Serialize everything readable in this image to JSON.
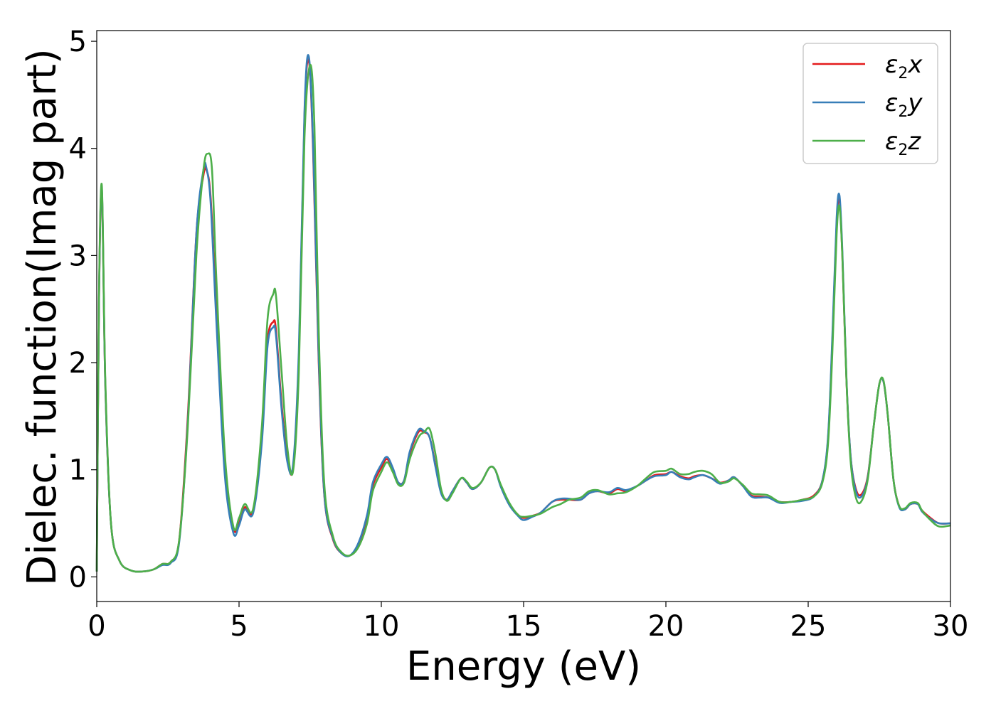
{
  "chart_data": {
    "type": "line",
    "title": "",
    "xlabel": "Energy (eV)",
    "ylabel": "Dielec. function(Imag part)",
    "xlim": [
      0,
      30
    ],
    "ylim": [
      -0.23,
      5.1
    ],
    "xticks": [
      "0",
      "5",
      "10",
      "15",
      "20",
      "25",
      "30"
    ],
    "yticks": [
      "0",
      "1",
      "2",
      "3",
      "4",
      "5"
    ],
    "grid": false,
    "legend_position": "top-right",
    "series": [
      {
        "name": "x",
        "color": "#e41a1c",
        "x": [
          0,
          0.08,
          0.18,
          0.3,
          0.5,
          0.8,
          1.2,
          1.6,
          2.0,
          2.3,
          2.6,
          2.9,
          3.2,
          3.5,
          3.75,
          3.85,
          4.0,
          4.2,
          4.5,
          4.8,
          5.0,
          5.2,
          5.5,
          5.8,
          6.0,
          6.2,
          6.3,
          6.5,
          6.7,
          6.9,
          7.1,
          7.3,
          7.45,
          7.6,
          7.8,
          8.0,
          8.3,
          8.6,
          8.9,
          9.2,
          9.5,
          9.7,
          10.0,
          10.2,
          10.4,
          10.6,
          10.8,
          11.0,
          11.3,
          11.5,
          11.7,
          11.9,
          12.1,
          12.3,
          12.5,
          12.8,
          13.0,
          13.2,
          13.5,
          13.8,
          14.0,
          14.2,
          14.5,
          14.8,
          15.0,
          15.3,
          15.6,
          16.0,
          16.3,
          16.6,
          17.0,
          17.3,
          17.6,
          18.0,
          18.3,
          18.6,
          19.0,
          19.3,
          19.6,
          20.0,
          20.2,
          20.5,
          20.8,
          21.0,
          21.3,
          21.6,
          21.9,
          22.2,
          22.4,
          22.7,
          23.0,
          23.3,
          23.6,
          24.0,
          24.4,
          24.8,
          25.2,
          25.5,
          25.7,
          25.85,
          26.0,
          26.1,
          26.2,
          26.35,
          26.5,
          26.7,
          26.9,
          27.1,
          27.3,
          27.5,
          27.65,
          27.8,
          28.0,
          28.2,
          28.4,
          28.6,
          28.85,
          29.0,
          29.3,
          29.6,
          30.0
        ],
        "y": [
          0.05,
          2.6,
          3.6,
          1.8,
          0.5,
          0.15,
          0.06,
          0.05,
          0.07,
          0.12,
          0.14,
          0.35,
          1.5,
          3.2,
          3.75,
          3.8,
          3.55,
          2.5,
          1.0,
          0.45,
          0.5,
          0.65,
          0.62,
          1.3,
          2.2,
          2.38,
          2.3,
          1.6,
          1.1,
          1.02,
          2.0,
          4.3,
          4.82,
          4.0,
          2.0,
          0.75,
          0.35,
          0.22,
          0.2,
          0.3,
          0.55,
          0.85,
          1.02,
          1.1,
          1.0,
          0.88,
          0.9,
          1.15,
          1.35,
          1.35,
          1.3,
          1.05,
          0.8,
          0.72,
          0.8,
          0.92,
          0.88,
          0.82,
          0.88,
          1.02,
          1.0,
          0.85,
          0.68,
          0.58,
          0.55,
          0.57,
          0.6,
          0.7,
          0.72,
          0.72,
          0.72,
          0.78,
          0.8,
          0.78,
          0.82,
          0.8,
          0.85,
          0.9,
          0.95,
          0.96,
          0.98,
          0.94,
          0.92,
          0.94,
          0.95,
          0.92,
          0.88,
          0.9,
          0.93,
          0.85,
          0.76,
          0.75,
          0.74,
          0.7,
          0.7,
          0.72,
          0.76,
          0.9,
          1.3,
          2.2,
          3.3,
          3.52,
          3.0,
          1.8,
          1.1,
          0.8,
          0.78,
          0.95,
          1.4,
          1.8,
          1.82,
          1.5,
          0.9,
          0.66,
          0.63,
          0.68,
          0.68,
          0.62,
          0.55,
          0.5,
          0.5
        ]
      },
      {
        "name": "y",
        "color": "#377eb8",
        "x": [
          0,
          0.08,
          0.18,
          0.3,
          0.5,
          0.8,
          1.2,
          1.6,
          2.0,
          2.3,
          2.6,
          2.9,
          3.2,
          3.5,
          3.75,
          3.85,
          4.0,
          4.2,
          4.5,
          4.8,
          5.0,
          5.2,
          5.5,
          5.8,
          6.0,
          6.2,
          6.3,
          6.5,
          6.7,
          6.9,
          7.1,
          7.3,
          7.45,
          7.6,
          7.8,
          8.0,
          8.3,
          8.6,
          8.9,
          9.2,
          9.5,
          9.7,
          10.0,
          10.2,
          10.4,
          10.6,
          10.8,
          11.0,
          11.3,
          11.5,
          11.7,
          11.9,
          12.1,
          12.3,
          12.5,
          12.8,
          13.0,
          13.2,
          13.5,
          13.8,
          14.0,
          14.2,
          14.5,
          14.8,
          15.0,
          15.3,
          15.6,
          16.0,
          16.3,
          16.6,
          17.0,
          17.3,
          17.6,
          18.0,
          18.3,
          18.6,
          19.0,
          19.3,
          19.6,
          20.0,
          20.2,
          20.5,
          20.8,
          21.0,
          21.3,
          21.6,
          21.9,
          22.2,
          22.4,
          22.7,
          23.0,
          23.3,
          23.6,
          24.0,
          24.4,
          24.8,
          25.2,
          25.5,
          25.7,
          25.85,
          26.0,
          26.1,
          26.2,
          26.35,
          26.5,
          26.7,
          26.9,
          27.1,
          27.3,
          27.5,
          27.65,
          27.8,
          28.0,
          28.2,
          28.4,
          28.6,
          28.85,
          29.0,
          29.3,
          29.6,
          30.0
        ],
        "y": [
          0.05,
          2.6,
          3.62,
          1.8,
          0.5,
          0.15,
          0.06,
          0.05,
          0.07,
          0.11,
          0.13,
          0.33,
          1.45,
          3.2,
          3.8,
          3.82,
          3.5,
          2.4,
          0.95,
          0.41,
          0.48,
          0.63,
          0.6,
          1.25,
          2.15,
          2.33,
          2.25,
          1.55,
          1.07,
          1.05,
          2.1,
          4.35,
          4.86,
          4.05,
          2.05,
          0.76,
          0.36,
          0.22,
          0.2,
          0.32,
          0.58,
          0.88,
          1.05,
          1.12,
          1.02,
          0.88,
          0.9,
          1.17,
          1.37,
          1.36,
          1.3,
          1.03,
          0.78,
          0.72,
          0.8,
          0.92,
          0.88,
          0.82,
          0.88,
          1.02,
          1.0,
          0.84,
          0.67,
          0.57,
          0.53,
          0.56,
          0.6,
          0.7,
          0.73,
          0.73,
          0.72,
          0.78,
          0.8,
          0.79,
          0.83,
          0.81,
          0.85,
          0.9,
          0.94,
          0.95,
          0.98,
          0.93,
          0.91,
          0.93,
          0.95,
          0.92,
          0.87,
          0.9,
          0.93,
          0.85,
          0.75,
          0.74,
          0.74,
          0.69,
          0.7,
          0.71,
          0.75,
          0.9,
          1.32,
          2.25,
          3.35,
          3.56,
          3.05,
          1.82,
          1.1,
          0.78,
          0.76,
          0.94,
          1.4,
          1.8,
          1.82,
          1.5,
          0.9,
          0.65,
          0.63,
          0.68,
          0.68,
          0.61,
          0.54,
          0.5,
          0.5
        ]
      },
      {
        "name": "z",
        "color": "#4daf4a",
        "x": [
          0,
          0.08,
          0.18,
          0.3,
          0.5,
          0.8,
          1.2,
          1.6,
          2.0,
          2.3,
          2.6,
          2.9,
          3.2,
          3.5,
          3.75,
          3.9,
          4.05,
          4.2,
          4.5,
          4.8,
          5.0,
          5.2,
          5.5,
          5.8,
          6.0,
          6.2,
          6.3,
          6.5,
          6.7,
          6.9,
          7.1,
          7.3,
          7.5,
          7.65,
          7.8,
          8.0,
          8.3,
          8.6,
          8.9,
          9.2,
          9.5,
          9.7,
          10.0,
          10.2,
          10.4,
          10.6,
          10.8,
          11.0,
          11.3,
          11.5,
          11.7,
          11.9,
          12.1,
          12.3,
          12.5,
          12.8,
          13.0,
          13.2,
          13.5,
          13.8,
          14.0,
          14.2,
          14.5,
          14.8,
          15.0,
          15.3,
          15.6,
          16.0,
          16.3,
          16.6,
          17.0,
          17.3,
          17.6,
          18.0,
          18.3,
          18.6,
          19.0,
          19.3,
          19.6,
          20.0,
          20.2,
          20.5,
          20.8,
          21.0,
          21.3,
          21.6,
          21.9,
          22.2,
          22.4,
          22.7,
          23.0,
          23.3,
          23.6,
          24.0,
          24.4,
          24.8,
          25.2,
          25.5,
          25.7,
          25.85,
          26.0,
          26.1,
          26.2,
          26.35,
          26.5,
          26.7,
          26.9,
          27.1,
          27.3,
          27.5,
          27.65,
          27.8,
          28.0,
          28.2,
          28.4,
          28.6,
          28.85,
          29.0,
          29.3,
          29.6,
          30.0
        ],
        "y": [
          0.05,
          2.65,
          3.65,
          1.85,
          0.5,
          0.15,
          0.06,
          0.05,
          0.07,
          0.12,
          0.14,
          0.35,
          1.4,
          3.0,
          3.8,
          3.95,
          3.8,
          2.8,
          1.15,
          0.47,
          0.55,
          0.68,
          0.64,
          1.4,
          2.4,
          2.64,
          2.62,
          1.9,
          1.2,
          0.99,
          1.9,
          4.1,
          4.78,
          4.2,
          2.3,
          0.85,
          0.38,
          0.23,
          0.2,
          0.28,
          0.5,
          0.8,
          0.98,
          1.07,
          0.98,
          0.86,
          0.88,
          1.1,
          1.3,
          1.35,
          1.38,
          1.15,
          0.82,
          0.71,
          0.78,
          0.92,
          0.89,
          0.83,
          0.88,
          1.02,
          1.0,
          0.86,
          0.69,
          0.58,
          0.56,
          0.57,
          0.59,
          0.65,
          0.68,
          0.72,
          0.74,
          0.8,
          0.81,
          0.77,
          0.78,
          0.79,
          0.85,
          0.92,
          0.98,
          0.99,
          1.01,
          0.96,
          0.96,
          0.98,
          0.99,
          0.96,
          0.88,
          0.89,
          0.92,
          0.86,
          0.78,
          0.77,
          0.76,
          0.7,
          0.7,
          0.72,
          0.75,
          0.88,
          1.25,
          2.1,
          3.2,
          3.46,
          3.0,
          1.8,
          1.05,
          0.72,
          0.72,
          0.92,
          1.4,
          1.8,
          1.83,
          1.5,
          0.9,
          0.66,
          0.64,
          0.69,
          0.69,
          0.62,
          0.53,
          0.47,
          0.48
        ]
      }
    ]
  },
  "legend": {
    "symbol": "ε",
    "subscript": "2",
    "items": [
      {
        "component": "x",
        "color": "#e41a1c"
      },
      {
        "component": "y",
        "color": "#377eb8"
      },
      {
        "component": "z",
        "color": "#4daf4a"
      }
    ]
  }
}
